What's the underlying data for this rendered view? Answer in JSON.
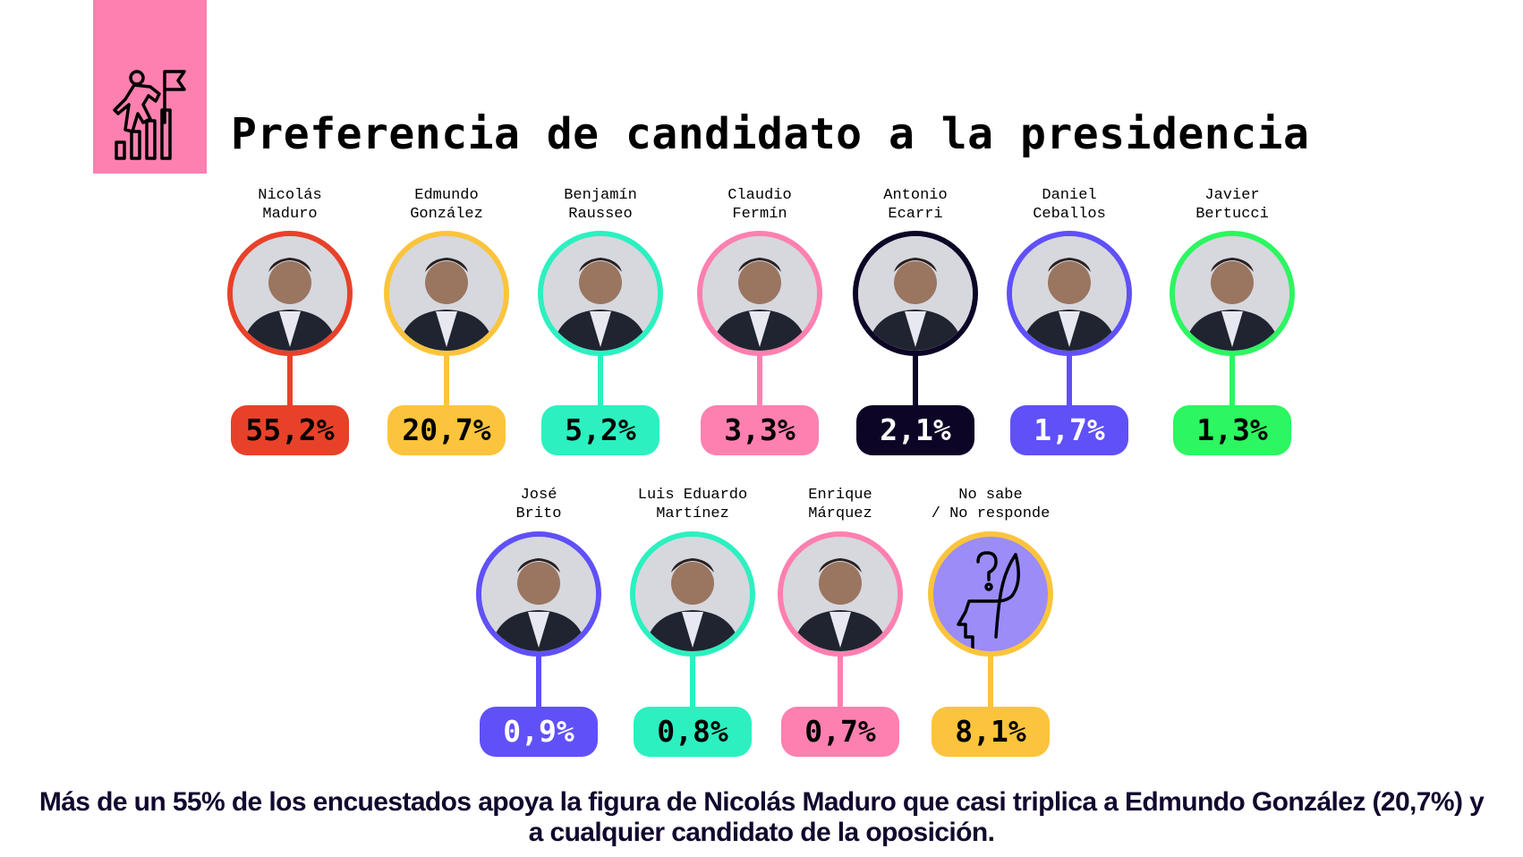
{
  "header": {
    "title": "Preferencia de candidato a la presidencia",
    "icon": "climber-flag-bar-chart-icon",
    "icon_bg": "#fe80b0"
  },
  "candidates": [
    {
      "name_line1": "Nicolás",
      "name_line2": "Maduro",
      "value": "55,2%",
      "percent": 55.2,
      "color": "#e8412a"
    },
    {
      "name_line1": "Edmundo",
      "name_line2": "González",
      "value": "20,7%",
      "percent": 20.7,
      "color": "#fcc43c"
    },
    {
      "name_line1": "Benjamín",
      "name_line2": "Rausseo",
      "value": "5,2%",
      "percent": 5.2,
      "color": "#2cf0c0"
    },
    {
      "name_line1": "Claudio",
      "name_line2": "Fermín",
      "value": "3,3%",
      "percent": 3.3,
      "color": "#fe80b0"
    },
    {
      "name_line1": "Antonio",
      "name_line2": "Ecarri",
      "value": "2,1%",
      "percent": 2.1,
      "color": "#0d0526"
    },
    {
      "name_line1": "Daniel",
      "name_line2": "Ceballos",
      "value": "1,7%",
      "percent": 1.7,
      "color": "#6050f8"
    },
    {
      "name_line1": "Javier",
      "name_line2": "Bertucci",
      "value": "1,3%",
      "percent": 1.3,
      "color": "#2cf660"
    },
    {
      "name_line1": "José",
      "name_line2": "Brito",
      "value": "0,9%",
      "percent": 0.9,
      "color": "#6050f8"
    },
    {
      "name_line1": "Luis Eduardo",
      "name_line2": "Martínez",
      "value": "0,8%",
      "percent": 0.8,
      "color": "#2cf0c0"
    },
    {
      "name_line1": "Enrique",
      "name_line2": "Márquez",
      "value": "0,7%",
      "percent": 0.7,
      "color": "#fe80b0"
    },
    {
      "name_line1": "No sabe",
      "name_line2": "/ No responde",
      "value": "8,1%",
      "percent": 8.1,
      "color": "#fcc43c",
      "icon": "question-head-icon",
      "icon_bg": "#9b8cf8"
    }
  ],
  "caption": {
    "line1": "Más de un 55% de los encuestados apoya la figura de Nicolás Maduro que casi triplica a Edmundo González (20,7%) y",
    "line2": "a cualquier candidato de la oposición."
  }
}
